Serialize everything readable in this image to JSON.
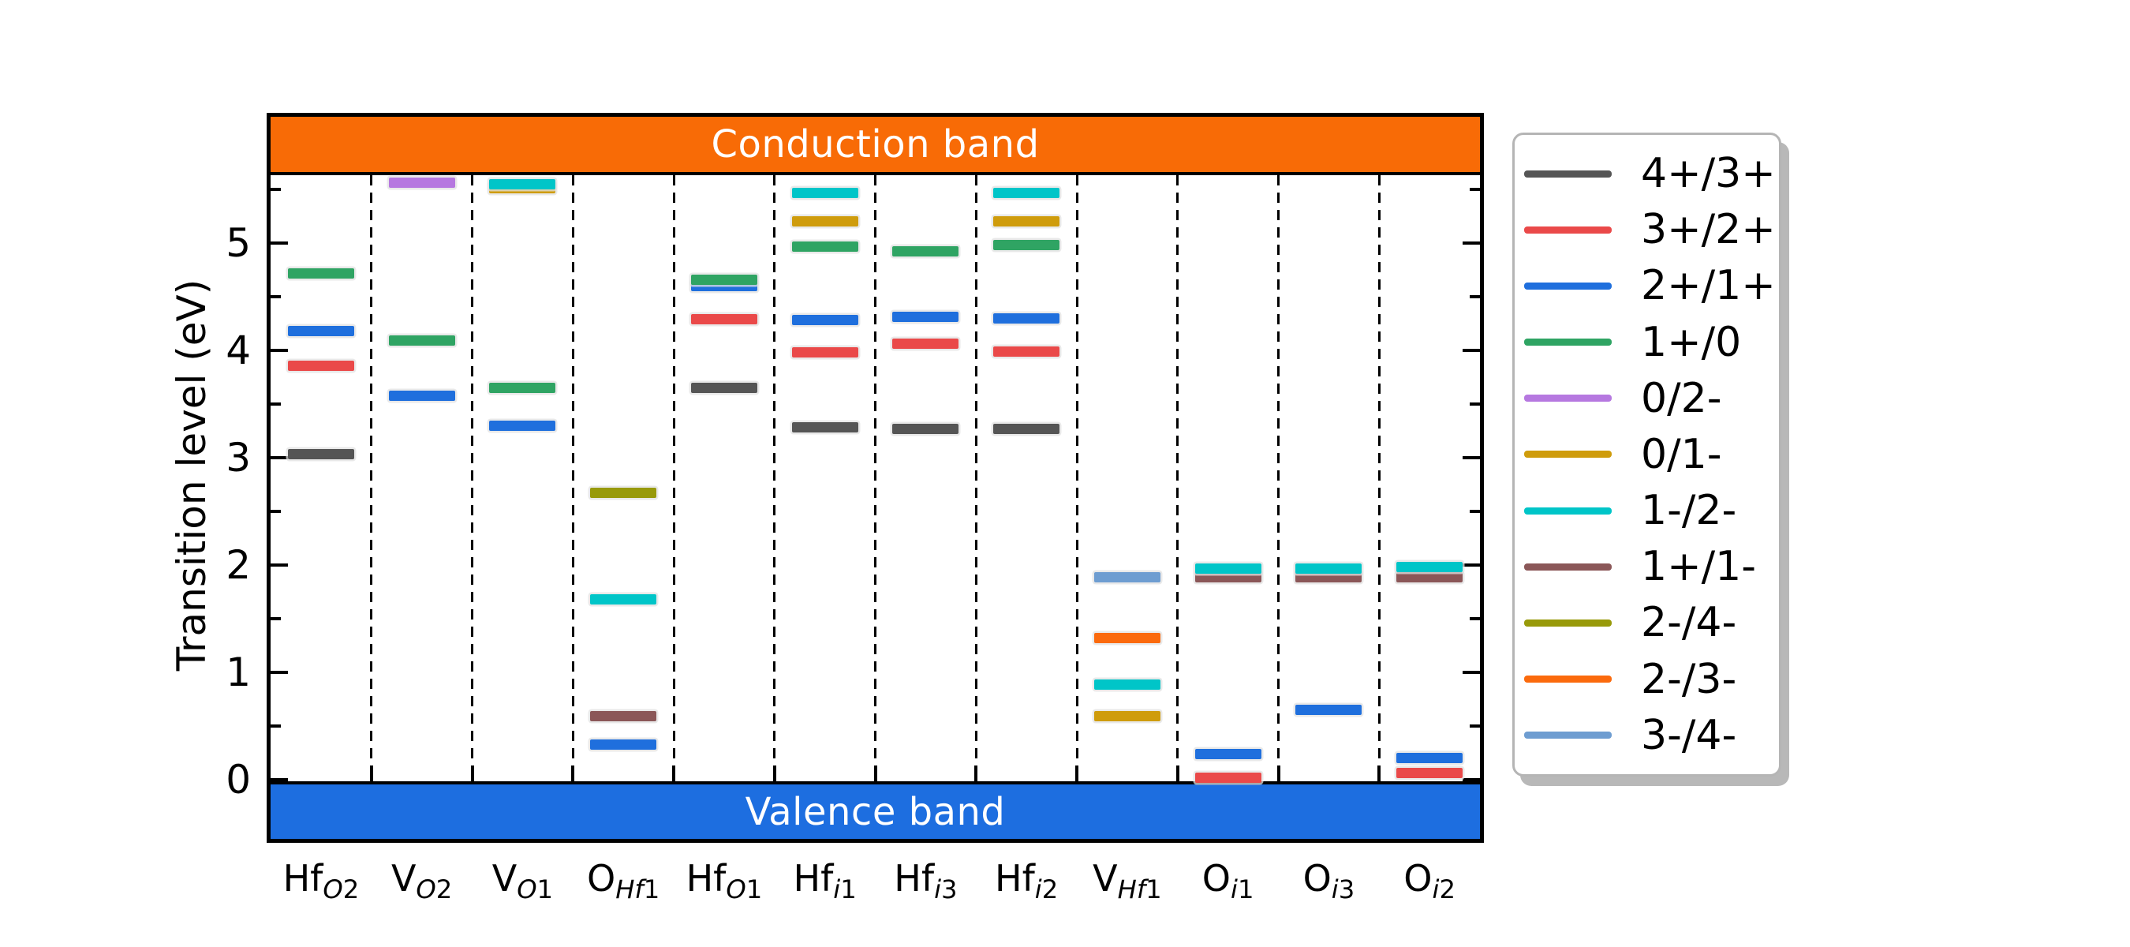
{
  "figure": {
    "conduction_band_label": "Conduction band",
    "valence_band_label": "Valence band",
    "conduction_band_color": "#f86b06",
    "valence_band_color": "#1d6ee0"
  },
  "legend": [
    {
      "label": "4+/3+",
      "color": "#555555"
    },
    {
      "label": "3+/2+",
      "color": "#ea4949"
    },
    {
      "label": "2+/1+",
      "color": "#1f6fdd"
    },
    {
      "label": "1+/0",
      "color": "#2fa463"
    },
    {
      "label": "0/2-",
      "color": "#b678e0"
    },
    {
      "label": "0/1-",
      "color": "#cf9c0c"
    },
    {
      "label": "1-/2-",
      "color": "#00c5c8"
    },
    {
      "label": "1+/1-",
      "color": "#8b5758"
    },
    {
      "label": "2-/4-",
      "color": "#989a0a"
    },
    {
      "label": "2-/3-",
      "color": "#fb6a0d"
    },
    {
      "label": "3-/4-",
      "color": "#6e9dd1"
    }
  ],
  "chart_data": {
    "type": "scatter",
    "subtype": "charge-transition-level-diagram",
    "title": "",
    "ylabel": "Transition level (eV)",
    "ylim": [
      -0.55,
      6.15
    ],
    "valence_band_max_eV": 0,
    "conduction_band_min_eV": 5.61,
    "y_major_ticks": [
      0,
      1,
      2,
      3,
      4,
      5
    ],
    "y_minor_tick_step": 0.5,
    "grid": "vertical-dashed-column-separators",
    "legend_position": "outside-right",
    "columns": [
      {
        "label": {
          "base": "Hf",
          "sub_i": "O",
          "sub_n": "2"
        },
        "levels": [
          {
            "transition": "1+/0",
            "energy": 4.72
          },
          {
            "transition": "2+/1+",
            "energy": 4.18
          },
          {
            "transition": "3+/2+",
            "energy": 3.86
          },
          {
            "transition": "4+/3+",
            "energy": 3.03
          }
        ]
      },
      {
        "label": {
          "base": "V",
          "sub_i": "O",
          "sub_n": "2"
        },
        "levels": [
          {
            "transition": "0/2-",
            "energy": 5.56
          },
          {
            "transition": "1+/0",
            "energy": 4.09
          },
          {
            "transition": "2+/1+",
            "energy": 3.58
          }
        ]
      },
      {
        "label": {
          "base": "V",
          "sub_i": "O",
          "sub_n": "1"
        },
        "levels": [
          {
            "transition": "1-/2-",
            "energy": 5.55
          },
          {
            "transition": "0/1-",
            "energy": 5.51
          },
          {
            "transition": "1+/0",
            "energy": 3.65
          },
          {
            "transition": "2+/1+",
            "energy": 3.3
          }
        ]
      },
      {
        "label": {
          "base": "O",
          "sub_i": "Hf",
          "sub_n": "1"
        },
        "levels": [
          {
            "transition": "2-/4-",
            "energy": 2.67
          },
          {
            "transition": "1-/2-",
            "energy": 1.68
          },
          {
            "transition": "1+/1-",
            "energy": 0.59
          },
          {
            "transition": "2+/1+",
            "energy": 0.33
          }
        ]
      },
      {
        "label": {
          "base": "Hf",
          "sub_i": "O",
          "sub_n": "1"
        },
        "levels": [
          {
            "transition": "1+/0",
            "energy": 4.66
          },
          {
            "transition": "2+/1+",
            "energy": 4.6
          },
          {
            "transition": "3+/2+",
            "energy": 4.29
          },
          {
            "transition": "4+/3+",
            "energy": 3.65
          }
        ]
      },
      {
        "label": {
          "base": "Hf",
          "sub_i": "i",
          "sub_n": "1"
        },
        "levels": [
          {
            "transition": "1-/2-",
            "energy": 5.47
          },
          {
            "transition": "0/1-",
            "energy": 5.2
          },
          {
            "transition": "1+/0",
            "energy": 4.97
          },
          {
            "transition": "2+/1+",
            "energy": 4.28
          },
          {
            "transition": "3+/2+",
            "energy": 3.98
          },
          {
            "transition": "4+/3+",
            "energy": 3.28
          }
        ]
      },
      {
        "label": {
          "base": "Hf",
          "sub_i": "i",
          "sub_n": "3"
        },
        "levels": [
          {
            "transition": "1+/0",
            "energy": 4.92
          },
          {
            "transition": "2+/1+",
            "energy": 4.31
          },
          {
            "transition": "3+/2+",
            "energy": 4.06
          },
          {
            "transition": "4+/3+",
            "energy": 3.27
          }
        ]
      },
      {
        "label": {
          "base": "Hf",
          "sub_i": "i",
          "sub_n": "2"
        },
        "levels": [
          {
            "transition": "1-/2-",
            "energy": 5.47
          },
          {
            "transition": "0/1-",
            "energy": 5.2
          },
          {
            "transition": "1+/0",
            "energy": 4.98
          },
          {
            "transition": "2+/1+",
            "energy": 4.3
          },
          {
            "transition": "3+/2+",
            "energy": 3.99
          },
          {
            "transition": "4+/3+",
            "energy": 3.27
          }
        ]
      },
      {
        "label": {
          "base": "V",
          "sub_i": "Hf",
          "sub_n": "1"
        },
        "levels": [
          {
            "transition": "3-/4-",
            "energy": 1.89
          },
          {
            "transition": "2-/3-",
            "energy": 1.32
          },
          {
            "transition": "1-/2-",
            "energy": 0.89
          },
          {
            "transition": "0/1-",
            "energy": 0.59
          }
        ]
      },
      {
        "label": {
          "base": "O",
          "sub_i": "i",
          "sub_n": "1"
        },
        "levels": [
          {
            "transition": "1-/2-",
            "energy": 1.97
          },
          {
            "transition": "1+/1-",
            "energy": 1.89
          },
          {
            "transition": "2+/1+",
            "energy": 0.24
          },
          {
            "transition": "3+/2+",
            "energy": 0.02
          }
        ]
      },
      {
        "label": {
          "base": "O",
          "sub_i": "i",
          "sub_n": "3"
        },
        "levels": [
          {
            "transition": "1-/2-",
            "energy": 1.97
          },
          {
            "transition": "1+/1-",
            "energy": 1.89
          },
          {
            "transition": "2+/1+",
            "energy": 0.65
          }
        ]
      },
      {
        "label": {
          "base": "O",
          "sub_i": "i",
          "sub_n": "2"
        },
        "levels": [
          {
            "transition": "1-/2-",
            "energy": 1.98
          },
          {
            "transition": "1+/1-",
            "energy": 1.89
          },
          {
            "transition": "2+/1+",
            "energy": 0.2
          },
          {
            "transition": "3+/2+",
            "energy": 0.06
          }
        ]
      }
    ]
  }
}
